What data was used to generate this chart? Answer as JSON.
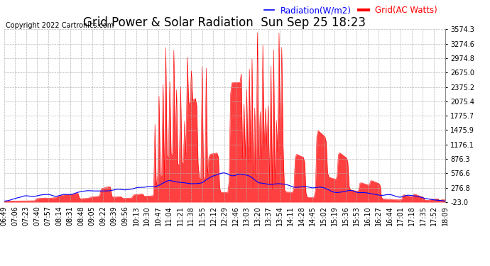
{
  "title": "Grid Power & Solar Radiation  Sun Sep 25 18:23",
  "copyright": "Copyright 2022 Cartronics.com",
  "legend_radiation": "Radiation(W/m2)",
  "legend_grid": "Grid(AC Watts)",
  "ylim_min": -23.0,
  "ylim_max": 3574.3,
  "yticks": [
    3574.3,
    3274.6,
    2974.8,
    2675.0,
    2375.2,
    2075.4,
    1775.7,
    1475.9,
    1176.1,
    876.3,
    576.6,
    276.8,
    -23.0
  ],
  "radiation_color": "blue",
  "grid_color": "red",
  "fill_color": "red",
  "fill_alpha": 0.75,
  "background_color": "#ffffff",
  "grid_line_color": "#b0b0b0",
  "title_fontsize": 12,
  "copyright_fontsize": 7,
  "legend_fontsize": 8.5,
  "tick_fontsize": 7
}
